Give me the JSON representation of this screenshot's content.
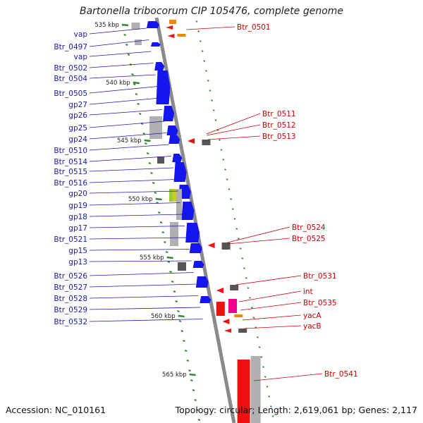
{
  "title": "Bartonella tribocorum CIP 105476, complete genome",
  "footer": {
    "accession": "Accession: NC_010161",
    "summary": "Topology: circular; Length: 2,619,061 bp; Genes: 2,117"
  },
  "colors": {
    "backbone": "#8a8a8a",
    "forward_cds": "#1515ee",
    "reverse_cds": "#ee1111",
    "pseudo": "#b0b0b0",
    "dark_pseudo": "#555555",
    "other": "#ee8800",
    "magenta": "#ee0088",
    "green_tick": "#338833",
    "left_label": "#1a1aa8",
    "right_label": "#cc0000"
  },
  "ticks": [
    "535 kbp",
    "540 kbp",
    "545 kbp",
    "550 kbp",
    "555 kbp",
    "560 kbp",
    "565 kbp"
  ],
  "left_labels": [
    "vap",
    "Btr_0497",
    "vap",
    "Btr_0502",
    "Btr_0504",
    "Btr_0505",
    "gp27",
    "gp26",
    "gp25",
    "gp24",
    "Btr_0510",
    "Btr_0514",
    "Btr_0515",
    "Btr_0516",
    "gp20",
    "gp19",
    "gp18",
    "gp17",
    "Btr_0521",
    "gp15",
    "gp13",
    "Btr_0526",
    "Btr_0527",
    "Btr_0528",
    "Btr_0529",
    "Btr_0532"
  ],
  "right_labels": [
    "Btr_0501",
    "Btr_0511",
    "Btr_0512",
    "Btr_0513",
    "Btr_0524",
    "Btr_0525",
    "Btr_0531",
    "int",
    "Btr_0535",
    "yacA",
    "yacB",
    "Btr_0541"
  ]
}
